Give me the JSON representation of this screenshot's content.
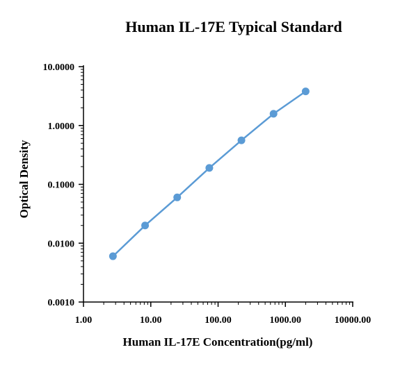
{
  "chart_data": {
    "type": "line",
    "title": "Human IL-17E Typical Standard",
    "xlabel": "Human IL-17E Concentration(pg/ml)",
    "ylabel": "Optical Density",
    "x_scale": "log",
    "y_scale": "log",
    "xlim": [
      1,
      10000
    ],
    "ylim": [
      0.001,
      10
    ],
    "x_ticks": [
      "1.00",
      "10.00",
      "100.00",
      "1000.00",
      "10000.00"
    ],
    "y_ticks": [
      "10.0000",
      "1.0000",
      "0.1000",
      "0.0100",
      "0.0010"
    ],
    "grid": false,
    "color": "#5b9bd5",
    "series": [
      {
        "x": [
          2.74,
          8.23,
          24.69,
          74.07,
          222.22,
          666.67,
          2000
        ],
        "y": [
          0.006,
          0.02,
          0.06,
          0.19,
          0.56,
          1.58,
          3.8
        ]
      }
    ]
  }
}
